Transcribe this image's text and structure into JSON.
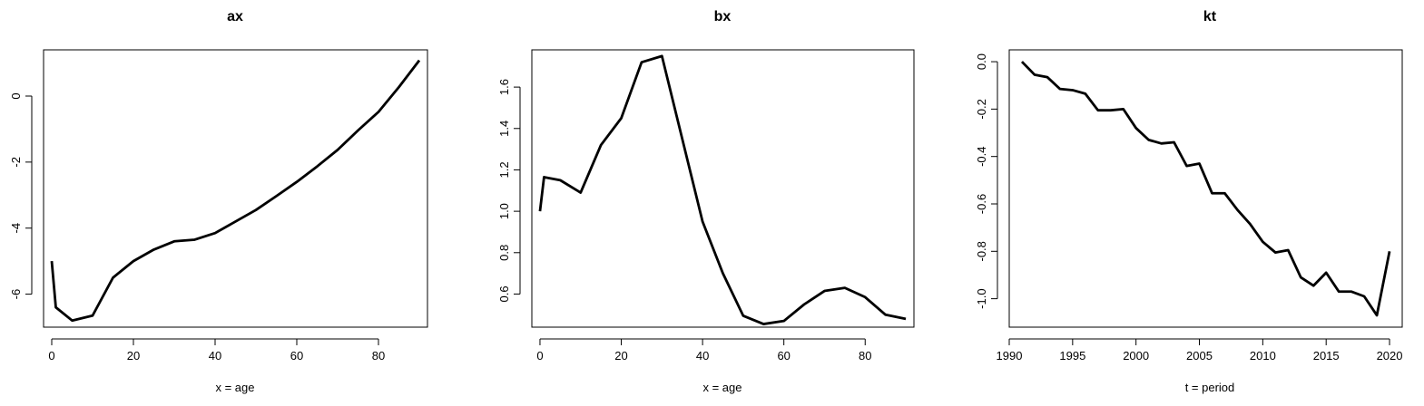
{
  "chart_data": [
    {
      "type": "line",
      "title": "ax",
      "xlabel": "x = age",
      "ylabel": "",
      "xlim": [
        -2,
        92
      ],
      "ylim": [
        -7.0,
        1.4
      ],
      "xticks": [
        0,
        20,
        40,
        60,
        80
      ],
      "yticks": [
        -6,
        -4,
        -2,
        0
      ],
      "x": [
        0,
        1,
        5,
        10,
        15,
        20,
        25,
        30,
        35,
        40,
        45,
        50,
        55,
        60,
        65,
        70,
        75,
        80,
        85,
        90
      ],
      "y": [
        -5.0,
        -6.4,
        -6.8,
        -6.65,
        -5.5,
        -5.0,
        -4.65,
        -4.4,
        -4.35,
        -4.15,
        -3.8,
        -3.45,
        -3.03,
        -2.6,
        -2.13,
        -1.63,
        -1.04,
        -0.48,
        0.27,
        1.08
      ]
    },
    {
      "type": "line",
      "title": "bx",
      "xlabel": "x = age",
      "ylabel": "",
      "xlim": [
        -2,
        92
      ],
      "ylim": [
        0.44,
        1.78
      ],
      "xticks": [
        0,
        20,
        40,
        60,
        80
      ],
      "yticks": [
        0.6,
        0.8,
        1.0,
        1.2,
        1.4,
        1.6
      ],
      "x": [
        0,
        1,
        5,
        10,
        15,
        20,
        25,
        30,
        35,
        40,
        45,
        50,
        55,
        60,
        65,
        70,
        75,
        80,
        85,
        90
      ],
      "y": [
        1.0,
        1.165,
        1.15,
        1.09,
        1.32,
        1.45,
        1.72,
        1.75,
        1.35,
        0.95,
        0.7,
        0.495,
        0.455,
        0.47,
        0.55,
        0.615,
        0.63,
        0.585,
        0.5,
        0.48
      ]
    },
    {
      "type": "line",
      "title": "kt",
      "xlabel": "t = period",
      "ylabel": "",
      "xlim": [
        1990,
        2021
      ],
      "ylim": [
        -1.12,
        0.05
      ],
      "xticks": [
        1990,
        1995,
        2000,
        2005,
        2010,
        2015,
        2020
      ],
      "yticks": [
        -1.0,
        -0.8,
        -0.6,
        -0.4,
        -0.2,
        0.0
      ],
      "x": [
        1991,
        1992,
        1993,
        1994,
        1995,
        1996,
        1997,
        1998,
        1999,
        2000,
        2001,
        2002,
        2003,
        2004,
        2005,
        2006,
        2007,
        2008,
        2009,
        2010,
        2011,
        2012,
        2013,
        2014,
        2015,
        2016,
        2017,
        2018,
        2019,
        2020
      ],
      "y": [
        0.0,
        -0.055,
        -0.065,
        -0.115,
        -0.12,
        -0.135,
        -0.205,
        -0.205,
        -0.2,
        -0.28,
        -0.33,
        -0.345,
        -0.34,
        -0.44,
        -0.43,
        -0.555,
        -0.555,
        -0.625,
        -0.685,
        -0.76,
        -0.805,
        -0.795,
        -0.91,
        -0.945,
        -0.89,
        -0.97,
        -0.97,
        -0.99,
        -1.07,
        -0.8
      ]
    }
  ]
}
